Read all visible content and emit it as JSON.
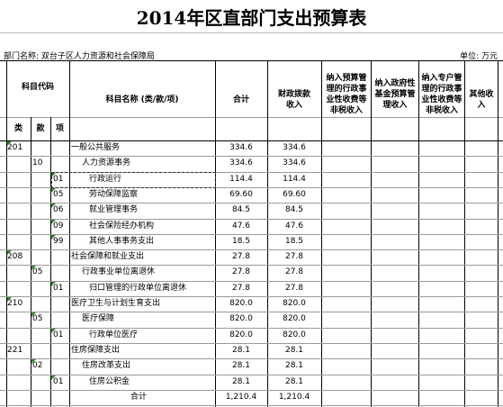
{
  "title": "2014年区直部门支出预算表",
  "department": "部门名称: 双台子区人力资源和社会保障局",
  "unit": "单位: 万元",
  "headers": {
    "code": "科目代码",
    "lei": "类",
    "kuan": "款",
    "xiang": "项",
    "name": "科目名称 (类/款/项)",
    "total": "合计",
    "fiscal": "财政拨款收入",
    "budget_mgmt": "纳入预算管理的行政事业性收费等非税收入",
    "fund": "纳入政府性基金预算管理收入",
    "special": "纳入专户管理的行政事业性收费等非税收入",
    "other": "其他收入"
  },
  "rows": [
    {
      "lei": "201",
      "kuan": "",
      "xiang": "",
      "name": "一般公共服务",
      "total": "334.6",
      "fiscal": "334.6",
      "indent": 0,
      "tri": [
        "lei"
      ]
    },
    {
      "lei": "",
      "kuan": "10",
      "xiang": "",
      "name": "人力资源事务",
      "total": "334.6",
      "fiscal": "334.6",
      "indent": 1,
      "tri": []
    },
    {
      "lei": "",
      "kuan": "",
      "xiang": "01",
      "name": "行政运行",
      "total": "114.4",
      "fiscal": "114.4",
      "indent": 2,
      "tri": [
        "xiang"
      ]
    },
    {
      "lei": "",
      "kuan": "",
      "xiang": "05",
      "name": "劳动保障监察",
      "total": "69.60",
      "fiscal": "69.60",
      "indent": 2,
      "tri": [
        "xiang"
      ]
    },
    {
      "lei": "",
      "kuan": "",
      "xiang": "06",
      "name": "就业管理事务",
      "total": "84.5",
      "fiscal": "84.5",
      "indent": 2,
      "tri": [
        "xiang"
      ]
    },
    {
      "lei": "",
      "kuan": "",
      "xiang": "09",
      "name": "社会保险经办机构",
      "total": "47.6",
      "fiscal": "47.6",
      "indent": 2,
      "tri": [
        "xiang"
      ]
    },
    {
      "lei": "",
      "kuan": "",
      "xiang": "99",
      "name": "其他人事事务支出",
      "total": "18.5",
      "fiscal": "18.5",
      "indent": 2,
      "tri": [
        "xiang"
      ]
    },
    {
      "lei": "208",
      "kuan": "",
      "xiang": "",
      "name": "社会保障和就业支出",
      "total": "27.8",
      "fiscal": "27.8",
      "indent": 0,
      "tri": [
        "lei"
      ]
    },
    {
      "lei": "",
      "kuan": "05",
      "xiang": "",
      "name": "行政事业单位离退休",
      "total": "27.8",
      "fiscal": "27.8",
      "indent": 1,
      "tri": [
        "kuan"
      ]
    },
    {
      "lei": "",
      "kuan": "",
      "xiang": "01",
      "name": "归口管理的行政单位离退休",
      "total": "27.8",
      "fiscal": "27.8",
      "indent": 2,
      "tri": [
        "xiang"
      ]
    },
    {
      "lei": "210",
      "kuan": "",
      "xiang": "",
      "name": "医疗卫生与计划生育支出",
      "total": "820.0",
      "fiscal": "820.0",
      "indent": 0,
      "tri": [
        "lei"
      ]
    },
    {
      "lei": "",
      "kuan": "05",
      "xiang": "",
      "name": "医疗保障",
      "total": "820.0",
      "fiscal": "820.0",
      "indent": 1,
      "tri": [
        "kuan"
      ]
    },
    {
      "lei": "",
      "kuan": "",
      "xiang": "01",
      "name": "行政单位医疗",
      "total": "820.0",
      "fiscal": "820.0",
      "indent": 2,
      "tri": [
        "xiang"
      ]
    },
    {
      "lei": "221",
      "kuan": "",
      "xiang": "",
      "name": "住房保障支出",
      "total": "28.1",
      "fiscal": "28.1",
      "indent": 0,
      "tri": []
    },
    {
      "lei": "",
      "kuan": "02",
      "xiang": "",
      "name": "住房改革支出",
      "total": "28.1",
      "fiscal": "28.1",
      "indent": 1,
      "tri": [
        "kuan"
      ]
    },
    {
      "lei": "",
      "kuan": "",
      "xiang": "01",
      "name": "住房公积金",
      "total": "28.1",
      "fiscal": "28.1",
      "indent": 2,
      "tri": [
        "xiang"
      ]
    },
    {
      "lei": "",
      "kuan": "",
      "xiang": "",
      "name": "合计",
      "total": "1,210.4",
      "fiscal": "1,210.4",
      "indent": 3,
      "tri": []
    }
  ]
}
